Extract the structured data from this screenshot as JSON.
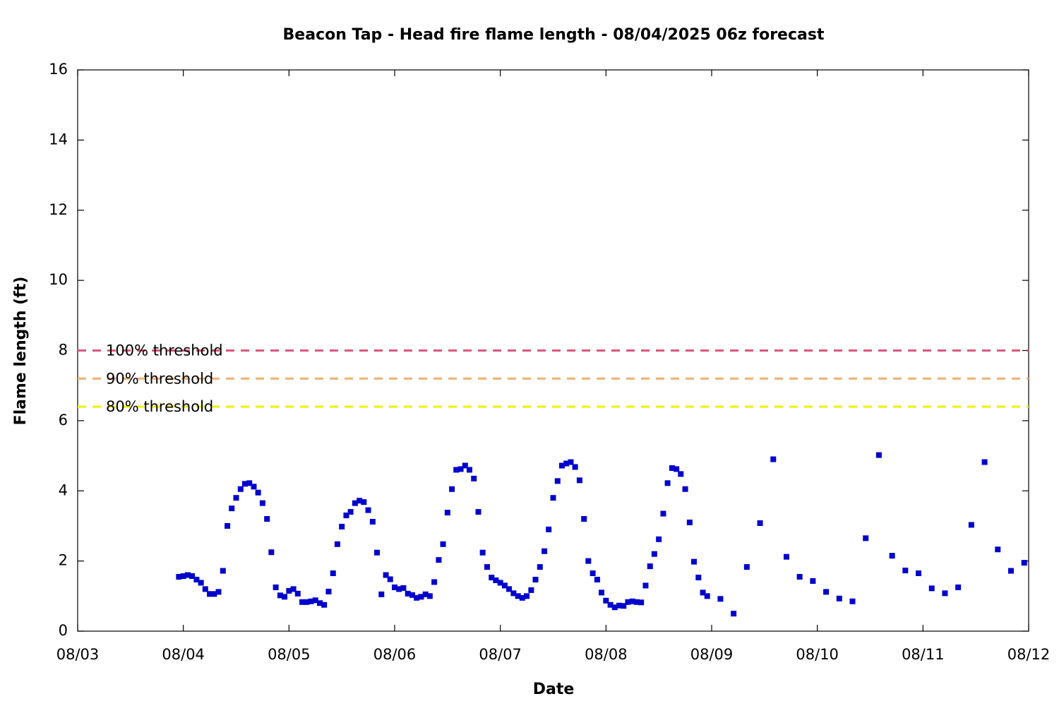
{
  "chart_data": {
    "type": "scatter",
    "title": "Beacon Tap - Head fire flame length - 08/04/2025 06z forecast",
    "xlabel": "Date",
    "ylabel": "Flame length (ft)",
    "color": "#0000cc",
    "x": [
      0.958,
      1,
      1.042,
      1.083,
      1.125,
      1.167,
      1.208,
      1.25,
      1.292,
      1.333,
      1.375,
      1.417,
      1.458,
      1.5,
      1.542,
      1.583,
      1.625,
      1.667,
      1.708,
      1.75,
      1.792,
      1.833,
      1.875,
      1.917,
      1.958,
      2,
      2.042,
      2.083,
      2.125,
      2.167,
      2.208,
      2.25,
      2.292,
      2.333,
      2.375,
      2.417,
      2.458,
      2.5,
      2.542,
      2.583,
      2.625,
      2.667,
      2.708,
      2.75,
      2.792,
      2.833,
      2.875,
      2.917,
      2.958,
      3,
      3.042,
      3.083,
      3.125,
      3.167,
      3.208,
      3.25,
      3.292,
      3.333,
      3.375,
      3.417,
      3.458,
      3.5,
      3.542,
      3.583,
      3.625,
      3.667,
      3.708,
      3.75,
      3.792,
      3.833,
      3.875,
      3.917,
      3.958,
      4,
      4.042,
      4.083,
      4.125,
      4.167,
      4.208,
      4.25,
      4.292,
      4.333,
      4.375,
      4.417,
      4.458,
      4.5,
      4.542,
      4.583,
      4.625,
      4.667,
      4.708,
      4.75,
      4.792,
      4.833,
      4.875,
      4.917,
      4.958,
      5,
      5.042,
      5.083,
      5.125,
      5.167,
      5.208,
      5.25,
      5.292,
      5.333,
      5.375,
      5.417,
      5.458,
      5.5,
      5.542,
      5.583,
      5.625,
      5.667,
      5.708,
      5.75,
      5.792,
      5.833,
      5.875,
      5.917,
      5.958,
      6.083,
      6.208,
      6.333,
      6.458,
      6.583,
      6.708,
      6.833,
      6.958,
      7.083,
      7.208,
      7.333,
      7.458,
      7.583,
      7.708,
      7.833,
      7.958,
      8.083,
      8.208,
      8.333,
      8.458,
      8.583,
      8.708,
      8.833,
      8.958
    ],
    "values": [
      1.55,
      1.57,
      1.6,
      1.57,
      1.47,
      1.38,
      1.2,
      1.06,
      1.06,
      1.12,
      1.72,
      3.0,
      3.5,
      3.8,
      4.05,
      4.2,
      4.22,
      4.12,
      3.95,
      3.65,
      3.2,
      2.25,
      1.25,
      1.02,
      0.98,
      1.15,
      1.2,
      1.07,
      0.83,
      0.83,
      0.85,
      0.88,
      0.8,
      0.75,
      1.13,
      1.65,
      2.48,
      2.98,
      3.3,
      3.4,
      3.65,
      3.72,
      3.68,
      3.45,
      3.12,
      2.24,
      1.05,
      1.6,
      1.48,
      1.25,
      1.2,
      1.23,
      1.07,
      1.03,
      0.95,
      0.98,
      1.05,
      1.0,
      1.4,
      2.03,
      2.48,
      3.38,
      4.05,
      4.6,
      4.62,
      4.72,
      4.6,
      4.35,
      3.4,
      2.24,
      1.83,
      1.53,
      1.45,
      1.38,
      1.3,
      1.2,
      1.08,
      1.0,
      0.95,
      1.0,
      1.17,
      1.47,
      1.83,
      2.28,
      2.9,
      3.8,
      4.28,
      4.72,
      4.78,
      4.82,
      4.68,
      4.3,
      3.2,
      2.0,
      1.65,
      1.47,
      1.1,
      0.87,
      0.75,
      0.68,
      0.73,
      0.72,
      0.83,
      0.85,
      0.83,
      0.82,
      1.3,
      1.85,
      2.2,
      2.62,
      3.35,
      4.22,
      4.65,
      4.62,
      4.48,
      4.05,
      3.1,
      1.98,
      1.53,
      1.1,
      1.0,
      0.92,
      0.5,
      1.83,
      3.08,
      4.9,
      2.12,
      1.55,
      1.43,
      1.12,
      0.93,
      0.85,
      2.65,
      5.02,
      2.15,
      1.73,
      1.65,
      1.22,
      1.08,
      1.25,
      3.03,
      4.82,
      2.33,
      1.72,
      1.95
    ],
    "thresholds": [
      {
        "label": "100% threshold",
        "value": 8,
        "color": "#d9587a"
      },
      {
        "label": "90% threshold",
        "value": 7.2,
        "color": "#f0b070"
      },
      {
        "label": "80% threshold",
        "value": 6.4,
        "color": "#f0f000"
      }
    ],
    "xlim": [
      0,
      9
    ],
    "xticks": [
      {
        "value": 0,
        "label": "08/03"
      },
      {
        "value": 1,
        "label": "08/04"
      },
      {
        "value": 2,
        "label": "08/05"
      },
      {
        "value": 3,
        "label": "08/06"
      },
      {
        "value": 4,
        "label": "08/07"
      },
      {
        "value": 5,
        "label": "08/08"
      },
      {
        "value": 6,
        "label": "08/09"
      },
      {
        "value": 7,
        "label": "08/10"
      },
      {
        "value": 8,
        "label": "08/11"
      },
      {
        "value": 9,
        "label": "08/12"
      }
    ],
    "ylim": [
      0,
      16
    ],
    "yticks": [
      0,
      2,
      4,
      6,
      8,
      10,
      12,
      14,
      16
    ]
  }
}
